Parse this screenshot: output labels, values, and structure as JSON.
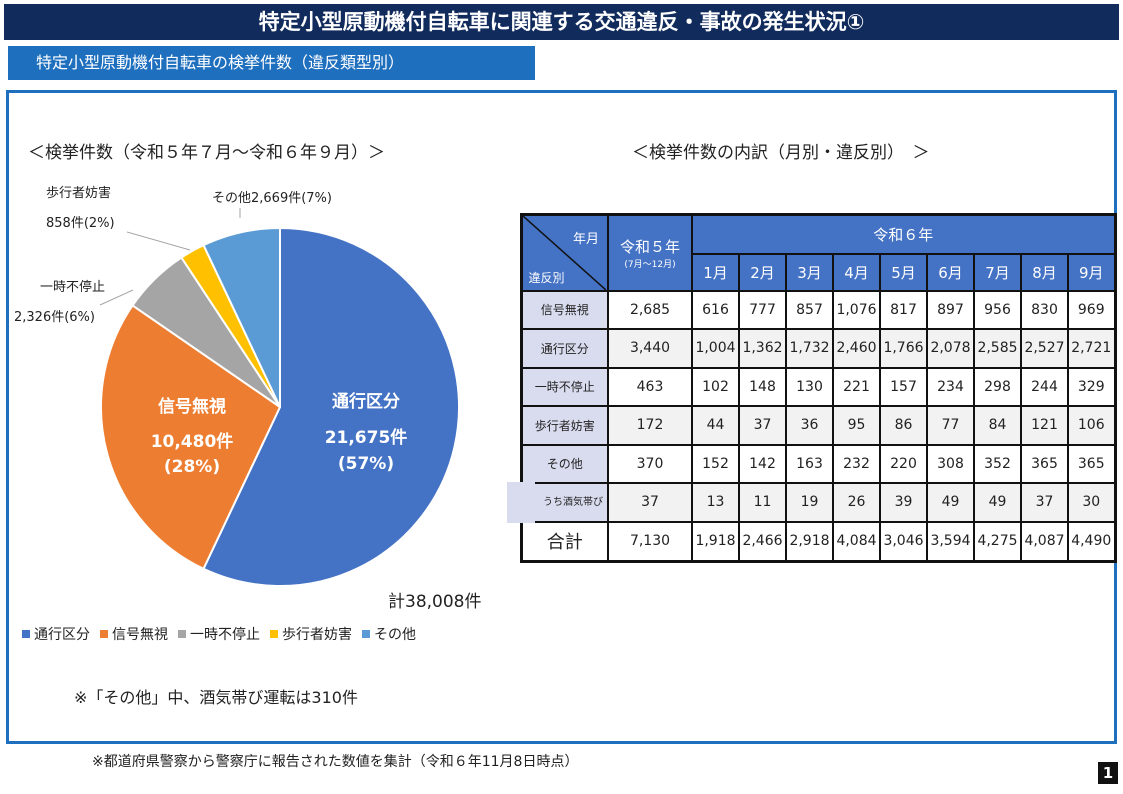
{
  "title": "特定小型原動機付自転車に関連する交通違反・事故の発生状況①",
  "subtitle": "特定小型原動機付自転車の検挙件数（違反類型別）",
  "pie_heading": "＜検挙件数（令和５年７月～令和６年９月）＞",
  "table_heading": "＜検挙件数の内訳（月別・違反別）　＞",
  "total_label": "計38,008件",
  "note": "※「その他」中、酒気帯び運転は310件",
  "footnote": "※都道府県警察から警察庁に報告された数値を集計（令和６年11月8日時点）",
  "page_number": "1",
  "chart_data": [
    {
      "type": "pie",
      "title": "＜検挙件数（令和５年７月～令和６年９月）＞",
      "legend_position": "bottom",
      "slices": [
        {
          "name": "通行区分",
          "value": 21675,
          "count_label": "21,675件",
          "pct_label": "(57%)",
          "color": "#4472c4"
        },
        {
          "name": "信号無視",
          "value": 10480,
          "count_label": "10,480件",
          "pct_label": "(28%)",
          "color": "#ed7d31"
        },
        {
          "name": "一時不停止",
          "value": 2326,
          "count_label": "2,326件(6%)",
          "color": "#a5a5a5"
        },
        {
          "name": "歩行者妨害",
          "value": 858,
          "count_label": "858件(2%)",
          "color": "#ffc000"
        },
        {
          "name": "その他",
          "value": 2669,
          "count_label": "その他2,669件(7%)",
          "color": "#5b9bd5"
        }
      ]
    },
    {
      "type": "table",
      "title": "＜検挙件数の内訳（月別・違反別）　＞",
      "corner_top": "年月",
      "corner_bottom": "違反別",
      "r5_label": "令和５年",
      "r5_sub": "(7月～12月)",
      "r6_label": "令和６年",
      "months": [
        "1月",
        "2月",
        "3月",
        "4月",
        "5月",
        "6月",
        "7月",
        "8月",
        "9月"
      ],
      "rows": [
        {
          "label": "信号無視",
          "r5": "2,685",
          "values": [
            "616",
            "777",
            "857",
            "1,076",
            "817",
            "897",
            "956",
            "830",
            "969"
          ]
        },
        {
          "label": "通行区分",
          "r5": "3,440",
          "values": [
            "1,004",
            "1,362",
            "1,732",
            "2,460",
            "1,766",
            "2,078",
            "2,585",
            "2,527",
            "2,721"
          ]
        },
        {
          "label": "一時不停止",
          "r5": "463",
          "values": [
            "102",
            "148",
            "130",
            "221",
            "157",
            "234",
            "298",
            "244",
            "329"
          ]
        },
        {
          "label": "歩行者妨害",
          "r5": "172",
          "values": [
            "44",
            "37",
            "36",
            "95",
            "86",
            "77",
            "84",
            "121",
            "106"
          ]
        },
        {
          "label": "その他",
          "r5": "370",
          "values": [
            "152",
            "142",
            "163",
            "232",
            "220",
            "308",
            "352",
            "365",
            "365"
          ]
        },
        {
          "label": "うち酒気帯び",
          "r5": "37",
          "values": [
            "13",
            "11",
            "19",
            "26",
            "39",
            "49",
            "49",
            "37",
            "30"
          ]
        }
      ],
      "total": {
        "label": "合計",
        "r5": "7,130",
        "values": [
          "1,918",
          "2,466",
          "2,918",
          "4,084",
          "3,046",
          "3,594",
          "4,275",
          "4,087",
          "4,490"
        ]
      }
    }
  ]
}
